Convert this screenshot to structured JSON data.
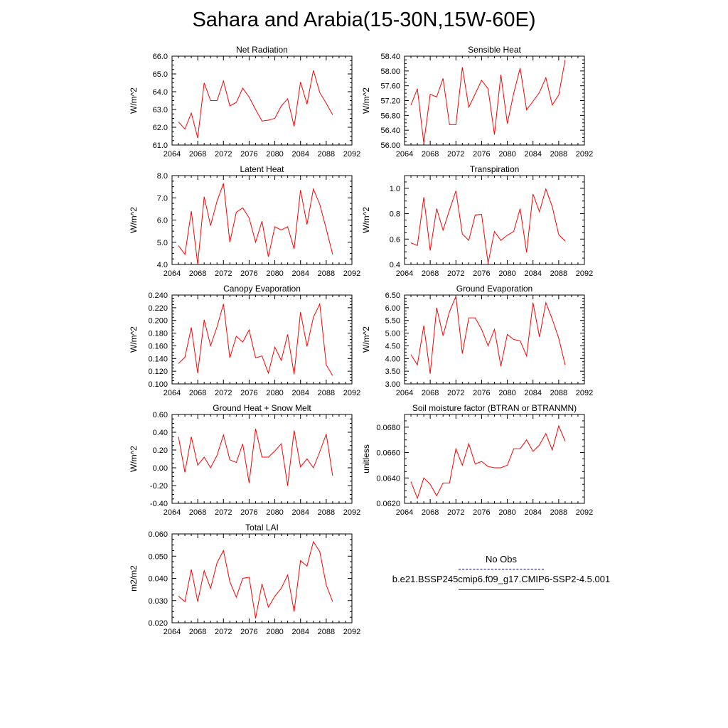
{
  "title": "Sahara and Arabia(15-30N,15W-60E)",
  "line_color": "#ff0000",
  "obs_color": "#000080",
  "legend": {
    "obs_label": "No Obs",
    "model_label": "b.e21.BSSP245cmip6.f09_g17.CMIP6-SSP2-4.5.001"
  },
  "chart_data": [
    {
      "type": "line",
      "title": "Net Radiation",
      "ylabel": "W/m^2",
      "xlim": [
        2064,
        2092
      ],
      "ylim": [
        61.0,
        66.0
      ],
      "xticks": [
        "2064",
        "2068",
        "2072",
        "2076",
        "2080",
        "2084",
        "2088",
        "2092"
      ],
      "yticks": [
        "61.0",
        "62.0",
        "63.0",
        "64.0",
        "65.0",
        "66.0"
      ],
      "x": [
        2065,
        2066,
        2067,
        2068,
        2069,
        2070,
        2071,
        2072,
        2073,
        2074,
        2075,
        2076,
        2077,
        2078,
        2079,
        2080,
        2081,
        2082,
        2083,
        2084,
        2085,
        2086,
        2087,
        2088,
        2089
      ],
      "values": [
        62.3,
        61.9,
        62.8,
        61.4,
        64.5,
        63.5,
        63.5,
        64.6,
        63.2,
        63.4,
        64.2,
        63.7,
        63.0,
        62.35,
        62.4,
        62.5,
        63.2,
        63.6,
        62.05,
        64.55,
        63.3,
        65.2,
        63.95,
        63.35,
        62.7
      ]
    },
    {
      "type": "line",
      "title": "Sensible Heat",
      "ylabel": "W/m^2",
      "xlim": [
        2064,
        2092
      ],
      "ylim": [
        56.0,
        58.4
      ],
      "xticks": [
        "2064",
        "2068",
        "2072",
        "2076",
        "2080",
        "2084",
        "2088",
        "2092"
      ],
      "yticks": [
        "56.00",
        "56.40",
        "56.80",
        "57.20",
        "57.60",
        "58.00",
        "58.40"
      ],
      "x": [
        2065,
        2066,
        2067,
        2068,
        2069,
        2070,
        2071,
        2072,
        2073,
        2074,
        2075,
        2076,
        2077,
        2078,
        2079,
        2080,
        2081,
        2082,
        2083,
        2084,
        2085,
        2086,
        2087,
        2088,
        2089
      ],
      "values": [
        57.08,
        57.52,
        56.05,
        57.37,
        57.3,
        57.8,
        56.55,
        56.55,
        58.1,
        57.02,
        57.38,
        57.75,
        57.52,
        56.28,
        57.9,
        56.58,
        57.4,
        58.08,
        56.95,
        57.18,
        57.42,
        57.82,
        57.08,
        57.35,
        58.3
      ]
    },
    {
      "type": "line",
      "title": "Latent Heat",
      "ylabel": "W/m^2",
      "xlim": [
        2064,
        2092
      ],
      "ylim": [
        4.0,
        8.0
      ],
      "xticks": [
        "2064",
        "2068",
        "2072",
        "2076",
        "2080",
        "2084",
        "2088",
        "2092"
      ],
      "yticks": [
        "4.0",
        "5.0",
        "6.0",
        "7.0",
        "8.0"
      ],
      "x": [
        2065,
        2066,
        2067,
        2068,
        2069,
        2070,
        2071,
        2072,
        2073,
        2074,
        2075,
        2076,
        2077,
        2078,
        2079,
        2080,
        2081,
        2082,
        2083,
        2084,
        2085,
        2086,
        2087,
        2088,
        2089
      ],
      "values": [
        4.85,
        4.45,
        6.4,
        4.0,
        7.05,
        5.75,
        6.85,
        7.65,
        5.0,
        6.35,
        6.55,
        6.1,
        5.0,
        5.95,
        4.35,
        5.7,
        5.55,
        5.7,
        4.7,
        7.35,
        5.8,
        7.4,
        6.7,
        5.6,
        4.45
      ]
    },
    {
      "type": "line",
      "title": "Transpiration",
      "ylabel": "W/m^2",
      "xlim": [
        2064,
        2092
      ],
      "ylim": [
        0.4,
        1.1
      ],
      "xticks": [
        "2064",
        "2068",
        "2072",
        "2076",
        "2080",
        "2084",
        "2088",
        "2092"
      ],
      "yticks": [
        "0.4",
        "0.6",
        "0.8",
        "1.0"
      ],
      "x": [
        2065,
        2066,
        2067,
        2068,
        2069,
        2070,
        2071,
        2072,
        2073,
        2074,
        2075,
        2076,
        2077,
        2078,
        2079,
        2080,
        2081,
        2082,
        2083,
        2084,
        2085,
        2086,
        2087,
        2088,
        2089
      ],
      "values": [
        0.57,
        0.55,
        0.93,
        0.51,
        0.84,
        0.67,
        0.83,
        0.98,
        0.64,
        0.59,
        0.79,
        0.795,
        0.41,
        0.66,
        0.59,
        0.63,
        0.66,
        0.84,
        0.495,
        0.955,
        0.815,
        0.995,
        0.855,
        0.635,
        0.585
      ]
    },
    {
      "type": "line",
      "title": "Canopy Evaporation",
      "ylabel": "W/m^2",
      "xlim": [
        2064,
        2092
      ],
      "ylim": [
        0.1,
        0.24
      ],
      "xticks": [
        "2064",
        "2068",
        "2072",
        "2076",
        "2080",
        "2084",
        "2088",
        "2092"
      ],
      "yticks": [
        "0.100",
        "0.120",
        "0.140",
        "0.160",
        "0.180",
        "0.200",
        "0.220",
        "0.240"
      ],
      "x": [
        2065,
        2066,
        2067,
        2068,
        2069,
        2070,
        2071,
        2072,
        2073,
        2074,
        2075,
        2076,
        2077,
        2078,
        2079,
        2080,
        2081,
        2082,
        2083,
        2084,
        2085,
        2086,
        2087,
        2088,
        2089
      ],
      "values": [
        0.132,
        0.142,
        0.189,
        0.117,
        0.201,
        0.16,
        0.19,
        0.226,
        0.141,
        0.175,
        0.166,
        0.185,
        0.141,
        0.144,
        0.117,
        0.158,
        0.137,
        0.178,
        0.115,
        0.213,
        0.159,
        0.205,
        0.226,
        0.13,
        0.113
      ]
    },
    {
      "type": "line",
      "title": "Ground Evaporation",
      "ylabel": "W/m^2",
      "xlim": [
        2064,
        2092
      ],
      "ylim": [
        3.0,
        6.5
      ],
      "xticks": [
        "2064",
        "2068",
        "2072",
        "2076",
        "2080",
        "2084",
        "2088",
        "2092"
      ],
      "yticks": [
        "3.00",
        "3.50",
        "4.00",
        "4.50",
        "5.00",
        "5.50",
        "6.00",
        "6.50"
      ],
      "x": [
        2065,
        2066,
        2067,
        2068,
        2069,
        2070,
        2071,
        2072,
        2073,
        2074,
        2075,
        2076,
        2077,
        2078,
        2079,
        2080,
        2081,
        2082,
        2083,
        2084,
        2085,
        2086,
        2087,
        2088,
        2089
      ],
      "values": [
        4.15,
        3.75,
        5.3,
        3.4,
        6.0,
        4.9,
        5.85,
        6.45,
        4.2,
        5.6,
        5.6,
        5.15,
        4.5,
        5.15,
        3.7,
        4.95,
        4.75,
        4.7,
        4.1,
        6.2,
        4.85,
        6.2,
        5.55,
        4.8,
        3.75
      ]
    },
    {
      "type": "line",
      "title": "Ground Heat + Snow Melt",
      "ylabel": "W/m^2",
      "xlim": [
        2064,
        2092
      ],
      "ylim": [
        -0.4,
        0.6
      ],
      "xticks": [
        "2064",
        "2068",
        "2072",
        "2076",
        "2080",
        "2084",
        "2088",
        "2092"
      ],
      "yticks": [
        "-0.40",
        "-0.20",
        "0.00",
        "0.20",
        "0.40",
        "0.60"
      ],
      "x": [
        2065,
        2066,
        2067,
        2068,
        2069,
        2070,
        2071,
        2072,
        2073,
        2074,
        2075,
        2076,
        2077,
        2078,
        2079,
        2080,
        2081,
        2082,
        2083,
        2084,
        2085,
        2086,
        2087,
        2088,
        2089
      ],
      "values": [
        0.35,
        -0.05,
        0.35,
        0.03,
        0.12,
        0.0,
        0.14,
        0.37,
        0.09,
        0.06,
        0.27,
        -0.17,
        0.44,
        0.12,
        0.12,
        0.19,
        0.27,
        -0.2,
        0.42,
        0.01,
        0.1,
        0.0,
        0.18,
        0.38,
        -0.09
      ]
    },
    {
      "type": "line",
      "title": "Soil moisture factor (BTRAN or BTRANMN)",
      "ylabel": "unitless",
      "xlim": [
        2064,
        2092
      ],
      "ylim": [
        0.062,
        0.069
      ],
      "xticks": [
        "2064",
        "2068",
        "2072",
        "2076",
        "2080",
        "2084",
        "2088",
        "2092"
      ],
      "yticks": [
        "0.0620",
        "0.0640",
        "0.0660",
        "0.0680"
      ],
      "x": [
        2065,
        2066,
        2067,
        2068,
        2069,
        2070,
        2071,
        2072,
        2073,
        2074,
        2075,
        2076,
        2077,
        2078,
        2079,
        2080,
        2081,
        2082,
        2083,
        2084,
        2085,
        2086,
        2087,
        2088,
        2089
      ],
      "values": [
        0.0637,
        0.0624,
        0.064,
        0.0635,
        0.0626,
        0.0636,
        0.0636,
        0.0663,
        0.065,
        0.0667,
        0.0651,
        0.0653,
        0.0649,
        0.0648,
        0.0648,
        0.065,
        0.0663,
        0.0663,
        0.067,
        0.0661,
        0.0666,
        0.0675,
        0.0662,
        0.0681,
        0.0669
      ]
    },
    {
      "type": "line",
      "title": "Total LAI",
      "ylabel": "m2/m2",
      "xlim": [
        2064,
        2092
      ],
      "ylim": [
        0.02,
        0.06
      ],
      "xticks": [
        "2064",
        "2068",
        "2072",
        "2076",
        "2080",
        "2084",
        "2088",
        "2092"
      ],
      "yticks": [
        "0.020",
        "0.030",
        "0.040",
        "0.050",
        "0.060"
      ],
      "x": [
        2065,
        2066,
        2067,
        2068,
        2069,
        2070,
        2071,
        2072,
        2073,
        2074,
        2075,
        2076,
        2077,
        2078,
        2079,
        2080,
        2081,
        2082,
        2083,
        2084,
        2085,
        2086,
        2087,
        2088,
        2089
      ],
      "values": [
        0.032,
        0.0295,
        0.044,
        0.0295,
        0.0435,
        0.0355,
        0.047,
        0.0525,
        0.0385,
        0.0315,
        0.04,
        0.0405,
        0.022,
        0.0375,
        0.027,
        0.032,
        0.0355,
        0.0415,
        0.025,
        0.048,
        0.0455,
        0.0565,
        0.052,
        0.037,
        0.0295
      ]
    }
  ]
}
